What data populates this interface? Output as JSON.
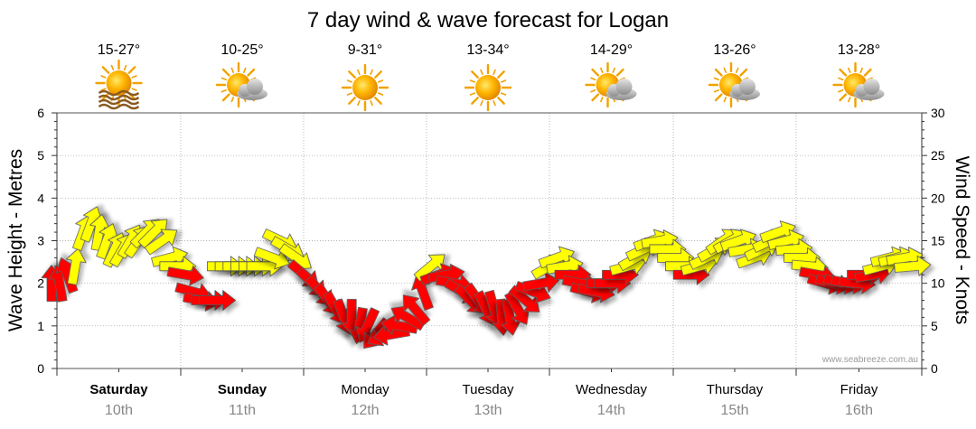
{
  "chart_data": {
    "type": "line",
    "title": "7 day wind & wave forecast for Logan",
    "ylabel": "Wave Height - Metres",
    "y2label": "Wind Speed - Knots",
    "ylim": [
      0,
      6
    ],
    "y2lim": [
      0,
      30
    ],
    "yticks": [
      "0",
      "1",
      "2",
      "3",
      "4",
      "5",
      "6"
    ],
    "y2ticks": [
      "0",
      "5",
      "10",
      "15",
      "20",
      "25",
      "30"
    ],
    "grid": true,
    "watermark": "www.seabreeze.com.au",
    "days": [
      {
        "name": "Saturday",
        "date": "10th",
        "temps": "15-27°",
        "weather": "sunny-haze",
        "bold": true
      },
      {
        "name": "Sunday",
        "date": "11th",
        "temps": "10-25°",
        "weather": "sun-cloud",
        "bold": true
      },
      {
        "name": "Monday",
        "date": "12th",
        "temps": "9-31°",
        "weather": "sunny",
        "bold": false
      },
      {
        "name": "Tuesday",
        "date": "13th",
        "temps": "13-34°",
        "weather": "sunny",
        "bold": false
      },
      {
        "name": "Wednesday",
        "date": "14th",
        "temps": "14-29°",
        "weather": "sun-cloud",
        "bold": false
      },
      {
        "name": "Thursday",
        "date": "15th",
        "temps": "13-26°",
        "weather": "sun-cloud",
        "bold": false
      },
      {
        "name": "Friday",
        "date": "16th",
        "temps": "13-28°",
        "weather": "sun-cloud",
        "bold": false
      }
    ],
    "wind_units": "knots",
    "wind_speed": [
      10,
      10,
      11,
      12,
      16,
      17,
      16,
      15,
      14,
      14,
      15,
      15,
      16,
      16,
      15,
      13,
      12,
      11,
      9,
      8,
      8,
      8,
      12,
      12,
      12,
      12,
      12,
      12,
      13,
      15,
      14,
      13,
      11,
      10,
      9,
      8,
      7,
      6,
      6,
      5,
      5,
      4,
      4,
      4,
      5,
      6,
      7,
      9,
      12,
      11,
      11,
      10,
      9,
      8,
      8,
      7,
      7,
      6,
      6,
      7,
      8,
      9,
      10,
      12,
      13,
      12,
      11,
      10,
      9,
      9,
      10,
      10,
      11,
      12,
      13,
      14,
      15,
      15,
      14,
      13,
      12,
      11,
      12,
      13,
      14,
      15,
      15,
      15,
      14,
      13,
      14,
      15,
      16,
      15,
      14,
      13,
      12,
      11,
      10,
      10,
      10,
      10,
      10,
      11,
      11,
      12,
      13,
      13,
      13,
      12
    ],
    "wind_direction_deg": [
      90,
      100,
      110,
      80,
      70,
      70,
      80,
      70,
      65,
      60,
      60,
      55,
      45,
      45,
      35,
      15,
      0,
      -10,
      -15,
      -10,
      0,
      0,
      0,
      0,
      0,
      0,
      0,
      0,
      -20,
      -25,
      -30,
      -35,
      -40,
      -45,
      -50,
      -55,
      -60,
      -70,
      -90,
      -100,
      -115,
      -130,
      -150,
      -170,
      170,
      150,
      130,
      110,
      40,
      20,
      10,
      -10,
      -30,
      -45,
      -55,
      -65,
      -75,
      -85,
      -80,
      -60,
      -40,
      -20,
      10,
      30,
      20,
      10,
      0,
      -10,
      -15,
      -10,
      0,
      0,
      0,
      15,
      30,
      25,
      20,
      10,
      0,
      0,
      0,
      0,
      15,
      25,
      30,
      35,
      30,
      20,
      10,
      20,
      25,
      25,
      20,
      15,
      5,
      0,
      -5,
      -10,
      -15,
      -15,
      -15,
      -10,
      -5,
      0,
      10,
      15,
      15,
      15,
      10,
      5
    ]
  }
}
